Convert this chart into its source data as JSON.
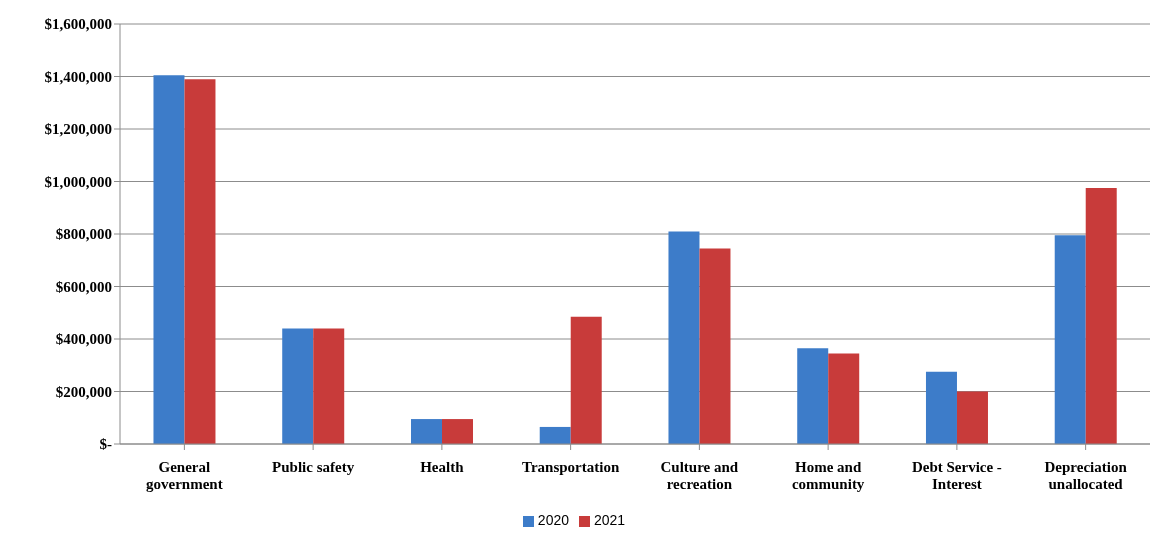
{
  "chart_data": {
    "type": "bar",
    "categories": [
      "General government",
      "Public safety",
      "Health",
      "Transportation",
      "Culture and recreation",
      "Home and community",
      "Debt Service - Interest",
      "Depreciation unallocated"
    ],
    "series": [
      {
        "name": "2020",
        "color": "#3d7cc9",
        "values": [
          1405000,
          440000,
          95000,
          65000,
          810000,
          365000,
          275000,
          795000
        ]
      },
      {
        "name": "2021",
        "color": "#c83b3a",
        "values": [
          1390000,
          440000,
          95000,
          485000,
          745000,
          345000,
          200000,
          975000
        ]
      }
    ],
    "ylim": [
      0,
      1600000
    ],
    "yticks": [
      {
        "value": 0,
        "label": "$-"
      },
      {
        "value": 200000,
        "label": "$200,000"
      },
      {
        "value": 400000,
        "label": "$400,000"
      },
      {
        "value": 600000,
        "label": "$600,000"
      },
      {
        "value": 800000,
        "label": "$800,000"
      },
      {
        "value": 1000000,
        "label": "$1,000,000"
      },
      {
        "value": 1200000,
        "label": "$1,200,000"
      },
      {
        "value": 1400000,
        "label": "$1,400,000"
      },
      {
        "value": 1600000,
        "label": "$1,600,000"
      }
    ],
    "grid": "y",
    "legend": "bottom"
  }
}
